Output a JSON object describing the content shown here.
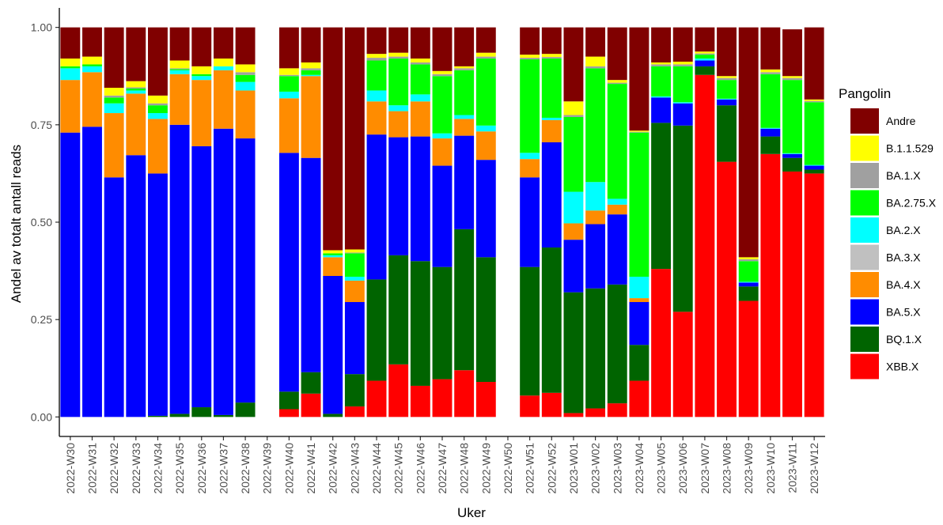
{
  "chart_data": {
    "type": "stacked_bar",
    "x_label": "Uker",
    "y_label": "Andel av totalt antall reads",
    "legend_title": "Pangolin",
    "legend_position": "right",
    "categories": [
      "2022-W30",
      "2022-W31",
      "2022-W32",
      "2022-W33",
      "2022-W34",
      "2022-W35",
      "2022-W36",
      "2022-W37",
      "2022-W38",
      "2022-W39",
      "2022-W40",
      "2022-W41",
      "2022-W42",
      "2022-W43",
      "2022-W44",
      "2022-W45",
      "2022-W46",
      "2022-W47",
      "2022-W48",
      "2022-W49",
      "2022-W50",
      "2022-W51",
      "2022-W52",
      "2023-W01",
      "2023-W02",
      "2023-W03",
      "2023-W04",
      "2023-W05",
      "2023-W06",
      "2023-W07",
      "2023-W08",
      "2023-W09",
      "2023-W10",
      "2023-W11",
      "2023-W12"
    ],
    "ylim": [
      -0.05,
      1.05
    ],
    "yticks": [
      {
        "value": 0,
        "label": "0.00"
      },
      {
        "value": 0.25,
        "label": "0.25"
      },
      {
        "value": 0.5,
        "label": "0.50"
      },
      {
        "value": 0.75,
        "label": "0.75"
      },
      {
        "value": 1,
        "label": "1.00"
      }
    ],
    "series": [
      {
        "name": "Andre",
        "color": "#800000",
        "values": [
          0.08,
          0.075,
          0.155,
          0.138,
          0.175,
          0.085,
          0.1,
          0.08,
          0.095,
          null,
          0.105,
          0.09,
          0.572,
          0.57,
          0.068,
          0.065,
          0.08,
          0.112,
          0.1,
          0.065,
          null,
          0.07,
          0.068,
          0.19,
          0.075,
          0.135,
          0.265,
          0.09,
          0.088,
          0.062,
          0.125,
          0.59,
          0.108,
          0.12,
          0.185
        ]
      },
      {
        "name": "B.1.1.529",
        "color": "#ffff00",
        "values": [
          0.02,
          0.02,
          0.02,
          0.016,
          0.02,
          0.02,
          0.02,
          0.02,
          0.02,
          null,
          0.017,
          0.015,
          0.008,
          0.008,
          0.01,
          0.01,
          0.01,
          0.008,
          0.005,
          0.01,
          null,
          0.008,
          0.008,
          0.035,
          0.025,
          0.007,
          0.003,
          0.005,
          0.007,
          0.005,
          0.005,
          0.005,
          0.007,
          0.005,
          0.004
        ]
      },
      {
        "name": "BA.1.X",
        "color": "#a0a0a0",
        "values": [
          0,
          0,
          0.005,
          0.003,
          0.005,
          0.002,
          0,
          0,
          0.007,
          null,
          0.003,
          0.005,
          0,
          0.002,
          0.007,
          0.005,
          0.005,
          0.005,
          0.005,
          0.005,
          null,
          0.004,
          0.004,
          0.005,
          0.005,
          0.003,
          0.002,
          0.005,
          0.005,
          0.003,
          0.005,
          0.005,
          0.005,
          0.005,
          0.003
        ]
      },
      {
        "name": "BA.2.75.X",
        "color": "#00ff00",
        "values": [
          0.005,
          0.005,
          0.015,
          0.005,
          0.02,
          0.003,
          0.005,
          0,
          0.018,
          null,
          0.04,
          0.012,
          0.005,
          0.06,
          0.077,
          0.12,
          0.077,
          0.147,
          0.115,
          0.172,
          null,
          0.24,
          0.152,
          0.192,
          0.292,
          0.295,
          0.37,
          0.077,
          0.092,
          0.01,
          0.048,
          0.053,
          0.138,
          0.188,
          0.161
        ]
      },
      {
        "name": "BA.2.X",
        "color": "#00ffff",
        "values": [
          0.03,
          0.015,
          0.025,
          0.008,
          0.015,
          0.01,
          0.01,
          0.01,
          0.022,
          null,
          0.017,
          0.003,
          0.005,
          0.01,
          0.028,
          0.015,
          0.018,
          0.013,
          0.01,
          0.015,
          null,
          0.016,
          0.006,
          0.081,
          0.073,
          0.015,
          0.055,
          0.003,
          0.003,
          0.005,
          0.002,
          0.002,
          0.002,
          0.002,
          0.002
        ]
      },
      {
        "name": "BA.3.X",
        "color": "#c0c0c0",
        "values": [
          0,
          0,
          0,
          0,
          0,
          0,
          0,
          0,
          0,
          null,
          0,
          0,
          0,
          0,
          0,
          0,
          0,
          0,
          0,
          0,
          null,
          0,
          0,
          0,
          0,
          0,
          0,
          0,
          0,
          0,
          0,
          0,
          0,
          0,
          0
        ]
      },
      {
        "name": "BA.4.X",
        "color": "#ff8c00",
        "values": [
          0.135,
          0.14,
          0.165,
          0.158,
          0.14,
          0.13,
          0.17,
          0.15,
          0.123,
          null,
          0.14,
          0.21,
          0.048,
          0.055,
          0.085,
          0.067,
          0.09,
          0.07,
          0.043,
          0.073,
          null,
          0.047,
          0.057,
          0.042,
          0.035,
          0.025,
          0.01,
          0,
          0,
          0,
          0,
          0,
          0,
          0,
          0
        ]
      },
      {
        "name": "BA.5.X",
        "color": "#0000ff",
        "values": [
          0.73,
          0.745,
          0.615,
          0.672,
          0.622,
          0.742,
          0.67,
          0.735,
          0.678,
          null,
          0.613,
          0.55,
          0.354,
          0.185,
          0.372,
          0.303,
          0.32,
          0.26,
          0.24,
          0.25,
          null,
          0.23,
          0.27,
          0.135,
          0.165,
          0.18,
          0.11,
          0.065,
          0.057,
          0.015,
          0.015,
          0.01,
          0.02,
          0.01,
          0.01
        ]
      },
      {
        "name": "BQ.1.X",
        "color": "#006400",
        "values": [
          0,
          0,
          0,
          0,
          0.003,
          0.008,
          0.025,
          0.005,
          0.037,
          null,
          0.045,
          0.055,
          0.008,
          0.083,
          0.26,
          0.28,
          0.32,
          0.288,
          0.362,
          0.32,
          null,
          0.33,
          0.373,
          0.31,
          0.308,
          0.305,
          0.092,
          0.375,
          0.478,
          0.022,
          0.145,
          0.037,
          0.045,
          0.035,
          0.01
        ]
      },
      {
        "name": "XBB.X",
        "color": "#ff0000",
        "values": [
          0,
          0,
          0,
          0,
          0,
          0,
          0,
          0,
          0,
          null,
          0.02,
          0.06,
          0,
          0.027,
          0.093,
          0.135,
          0.08,
          0.097,
          0.12,
          0.09,
          null,
          0.055,
          0.062,
          0.01,
          0.022,
          0.035,
          0.093,
          0.38,
          0.27,
          0.878,
          0.655,
          0.298,
          0.675,
          0.63,
          0.625
        ]
      }
    ]
  }
}
